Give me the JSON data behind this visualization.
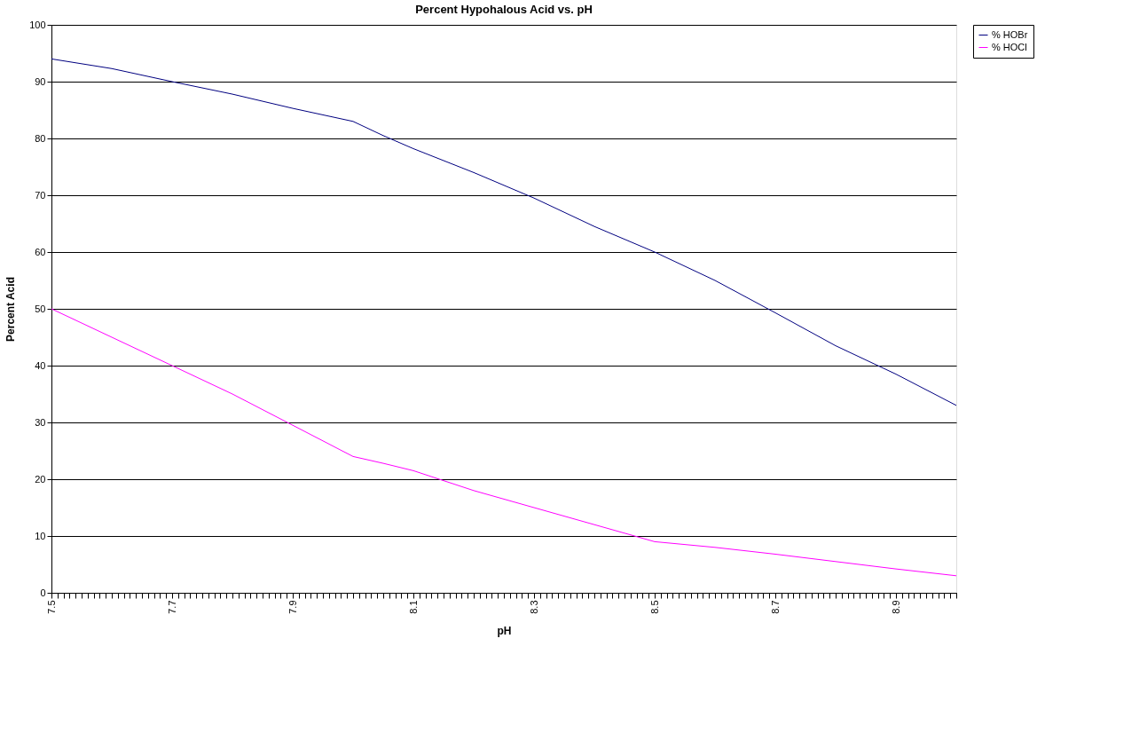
{
  "chart_data": {
    "type": "line",
    "title": "Percent Hypohalous Acid vs. pH",
    "xlabel": "pH",
    "ylabel": "Percent Acid",
    "x": [
      7.5,
      7.6,
      7.7,
      7.8,
      7.9,
      8.0,
      8.05,
      8.1,
      8.2,
      8.3,
      8.4,
      8.5,
      8.6,
      8.7,
      8.8,
      8.9,
      9.0
    ],
    "series": [
      {
        "name": "% HOBr",
        "color": "#000080",
        "values": [
          94,
          92.3,
          90,
          87.8,
          85.3,
          83,
          80.5,
          78.2,
          74,
          69.5,
          64.5,
          60,
          55,
          49.3,
          43.5,
          38.5,
          33
        ]
      },
      {
        "name": "% HOCl",
        "color": "#ff00ff",
        "values": [
          50,
          45,
          40,
          35,
          29.5,
          24,
          22.8,
          21.5,
          18,
          15,
          12,
          9,
          8,
          6.8,
          5.5,
          4.2,
          3
        ]
      }
    ],
    "xlim": [
      7.5,
      9.0
    ],
    "xticks": [
      7.5,
      {
        "value": 7.51,
        "label": null
      },
      {
        "value": 7.52,
        "label": null
      },
      {
        "value": 7.53,
        "label": null
      },
      {
        "value": 7.54,
        "label": null
      },
      {
        "value": 7.55,
        "label": null
      },
      {
        "value": 7.56,
        "label": null
      },
      {
        "value": 7.57,
        "label": null
      },
      {
        "value": 7.58,
        "label": null
      },
      {
        "value": 7.59,
        "label": null
      },
      {
        "value": 7.6,
        "label": null
      },
      {
        "value": 7.61,
        "label": null
      },
      {
        "value": 7.62,
        "label": null
      },
      {
        "value": 7.63,
        "label": null
      },
      {
        "value": 7.64,
        "label": null
      },
      {
        "value": 7.65,
        "label": null
      },
      {
        "value": 7.66,
        "label": null
      },
      {
        "value": 7.67,
        "label": null
      },
      {
        "value": 7.68,
        "label": null
      },
      {
        "value": 7.69,
        "label": null
      },
      7.7,
      {
        "value": 7.71,
        "label": null
      },
      {
        "value": 7.72,
        "label": null
      },
      {
        "value": 7.73,
        "label": null
      },
      {
        "value": 7.74,
        "label": null
      },
      {
        "value": 7.75,
        "label": null
      },
      {
        "value": 7.76,
        "label": null
      },
      {
        "value": 7.77,
        "label": null
      },
      {
        "value": 7.78,
        "label": null
      },
      {
        "value": 7.79,
        "label": null
      },
      {
        "value": 7.8,
        "label": null
      },
      {
        "value": 7.81,
        "label": null
      },
      {
        "value": 7.82,
        "label": null
      },
      {
        "value": 7.83,
        "label": null
      },
      {
        "value": 7.84,
        "label": null
      },
      {
        "value": 7.85,
        "label": null
      },
      {
        "value": 7.86,
        "label": null
      },
      {
        "value": 7.87,
        "label": null
      },
      {
        "value": 7.88,
        "label": null
      },
      {
        "value": 7.89,
        "label": null
      },
      7.9,
      {
        "value": 7.91,
        "label": null
      },
      {
        "value": 7.92,
        "label": null
      },
      {
        "value": 7.93,
        "label": null
      },
      {
        "value": 7.94,
        "label": null
      },
      {
        "value": 7.95,
        "label": null
      },
      {
        "value": 7.96,
        "label": null
      },
      {
        "value": 7.97,
        "label": null
      },
      {
        "value": 7.98,
        "label": null
      },
      {
        "value": 7.99,
        "label": null
      },
      {
        "value": 8.0,
        "label": null
      },
      {
        "value": 8.01,
        "label": null
      },
      {
        "value": 8.02,
        "label": null
      },
      {
        "value": 8.03,
        "label": null
      },
      {
        "value": 8.04,
        "label": null
      },
      {
        "value": 8.05,
        "label": null
      },
      {
        "value": 8.06,
        "label": null
      },
      {
        "value": 8.07,
        "label": null
      },
      {
        "value": 8.08,
        "label": null
      },
      {
        "value": 8.09,
        "label": null
      },
      8.1,
      {
        "value": 8.11,
        "label": null
      },
      {
        "value": 8.12,
        "label": null
      },
      {
        "value": 8.13,
        "label": null
      },
      {
        "value": 8.14,
        "label": null
      },
      {
        "value": 8.15,
        "label": null
      },
      {
        "value": 8.16,
        "label": null
      },
      {
        "value": 8.17,
        "label": null
      },
      {
        "value": 8.18,
        "label": null
      },
      {
        "value": 8.19,
        "label": null
      },
      {
        "value": 8.2,
        "label": null
      },
      {
        "value": 8.21,
        "label": null
      },
      {
        "value": 8.22,
        "label": null
      },
      {
        "value": 8.23,
        "label": null
      },
      {
        "value": 8.24,
        "label": null
      },
      {
        "value": 8.25,
        "label": null
      },
      {
        "value": 8.26,
        "label": null
      },
      {
        "value": 8.27,
        "label": null
      },
      {
        "value": 8.28,
        "label": null
      },
      {
        "value": 8.29,
        "label": null
      },
      8.3,
      {
        "value": 8.31,
        "label": null
      },
      {
        "value": 8.32,
        "label": null
      },
      {
        "value": 8.33,
        "label": null
      },
      {
        "value": 8.34,
        "label": null
      },
      {
        "value": 8.35,
        "label": null
      },
      {
        "value": 8.36,
        "label": null
      },
      {
        "value": 8.37,
        "label": null
      },
      {
        "value": 8.38,
        "label": null
      },
      {
        "value": 8.39,
        "label": null
      },
      {
        "value": 8.4,
        "label": null
      },
      {
        "value": 8.41,
        "label": null
      },
      {
        "value": 8.42,
        "label": null
      },
      {
        "value": 8.43,
        "label": null
      },
      {
        "value": 8.44,
        "label": null
      },
      {
        "value": 8.45,
        "label": null
      },
      {
        "value": 8.46,
        "label": null
      },
      {
        "value": 8.47,
        "label": null
      },
      {
        "value": 8.48,
        "label": null
      },
      {
        "value": 8.49,
        "label": null
      },
      8.5,
      {
        "value": 8.51,
        "label": null
      },
      {
        "value": 8.52,
        "label": null
      },
      {
        "value": 8.53,
        "label": null
      },
      {
        "value": 8.54,
        "label": null
      },
      {
        "value": 8.55,
        "label": null
      },
      {
        "value": 8.56,
        "label": null
      },
      {
        "value": 8.57,
        "label": null
      },
      {
        "value": 8.58,
        "label": null
      },
      {
        "value": 8.59,
        "label": null
      },
      {
        "value": 8.6,
        "label": null
      },
      {
        "value": 8.61,
        "label": null
      },
      {
        "value": 8.62,
        "label": null
      },
      {
        "value": 8.63,
        "label": null
      },
      {
        "value": 8.64,
        "label": null
      },
      {
        "value": 8.65,
        "label": null
      },
      {
        "value": 8.66,
        "label": null
      },
      {
        "value": 8.67,
        "label": null
      },
      {
        "value": 8.68,
        "label": null
      },
      {
        "value": 8.69,
        "label": null
      },
      8.7,
      {
        "value": 8.71,
        "label": null
      },
      {
        "value": 8.72,
        "label": null
      },
      {
        "value": 8.73,
        "label": null
      },
      {
        "value": 8.74,
        "label": null
      },
      {
        "value": 8.75,
        "label": null
      },
      {
        "value": 8.76,
        "label": null
      },
      {
        "value": 8.77,
        "label": null
      },
      {
        "value": 8.78,
        "label": null
      },
      {
        "value": 8.79,
        "label": null
      },
      {
        "value": 8.8,
        "label": null
      },
      {
        "value": 8.81,
        "label": null
      },
      {
        "value": 8.82,
        "label": null
      },
      {
        "value": 8.83,
        "label": null
      },
      {
        "value": 8.84,
        "label": null
      },
      {
        "value": 8.85,
        "label": null
      },
      {
        "value": 8.86,
        "label": null
      },
      {
        "value": 8.87,
        "label": null
      },
      {
        "value": 8.88,
        "label": null
      },
      {
        "value": 8.89,
        "label": null
      },
      8.9,
      {
        "value": 8.91,
        "label": null
      },
      {
        "value": 8.92,
        "label": null
      },
      {
        "value": 8.93,
        "label": null
      },
      {
        "value": 8.94,
        "label": null
      },
      {
        "value": 8.95,
        "label": null
      },
      {
        "value": 8.96,
        "label": null
      },
      {
        "value": 8.97,
        "label": null
      },
      {
        "value": 8.98,
        "label": null
      },
      {
        "value": 8.99,
        "label": null
      },
      {
        "value": 9.0,
        "label": null
      }
    ],
    "ylim": [
      0,
      100
    ],
    "yticks": [
      0,
      10,
      20,
      30,
      40,
      50,
      60,
      70,
      80,
      90,
      100
    ],
    "grid": "y",
    "legend": "right",
    "marker": "none",
    "line_style": "solid"
  }
}
